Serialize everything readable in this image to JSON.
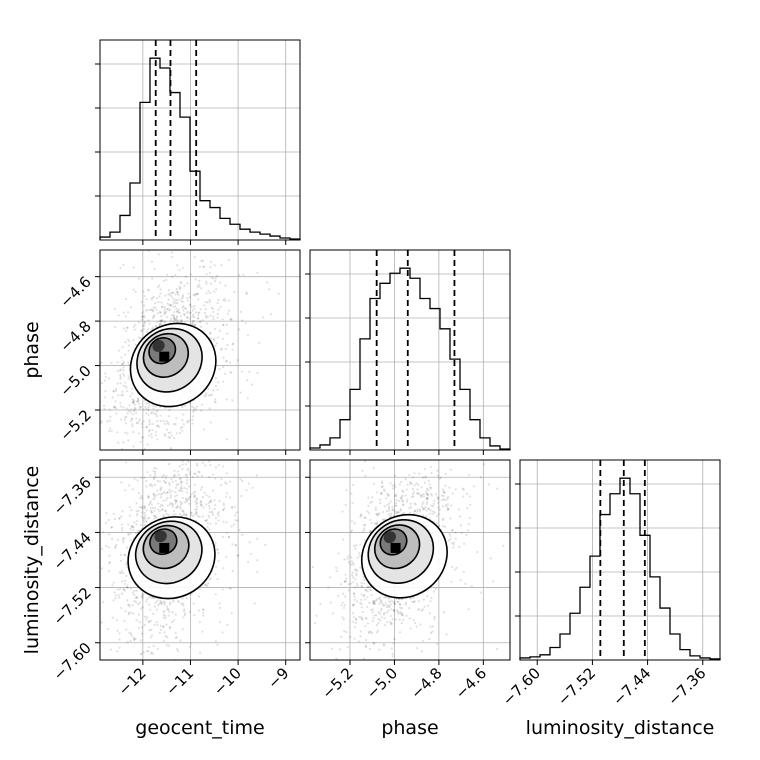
{
  "chart_data": {
    "type": "corner",
    "parameters": [
      "geocent_time",
      "phase",
      "luminosity_distance"
    ],
    "axis_labels": {
      "geocent_time": "geocent_time",
      "phase": "phase",
      "luminosity_distance": "luminosity_distance"
    },
    "ranges": {
      "geocent_time": [
        -12.9,
        -8.7
      ],
      "phase": [
        -5.38,
        -4.48
      ],
      "luminosity_distance": [
        -7.625,
        -7.335
      ]
    },
    "ticks": {
      "geocent_time": [
        {
          "value": -12,
          "label": "−12"
        },
        {
          "value": -11,
          "label": "−11"
        },
        {
          "value": -10,
          "label": "−10"
        },
        {
          "value": -9,
          "label": "−9"
        }
      ],
      "phase": [
        {
          "value": -5.2,
          "label": "−5.2"
        },
        {
          "value": -5.0,
          "label": "−5.0"
        },
        {
          "value": -4.8,
          "label": "−4.8"
        },
        {
          "value": -4.6,
          "label": "−4.6"
        }
      ],
      "luminosity_distance": [
        {
          "value": -7.6,
          "label": "−7.60"
        },
        {
          "value": -7.52,
          "label": "−7.52"
        },
        {
          "value": -7.44,
          "label": "−7.44"
        },
        {
          "value": -7.36,
          "label": "−7.36"
        }
      ]
    },
    "histograms": {
      "geocent_time": {
        "bins": [
          -12.9,
          -12.69,
          -12.48,
          -12.27,
          -12.06,
          -11.85,
          -11.64,
          -11.43,
          -11.22,
          -11.01,
          -10.8,
          -10.59,
          -10.38,
          -10.17,
          -9.96,
          -9.75,
          -9.54,
          -9.33,
          -9.12,
          -8.91,
          -8.7
        ],
        "counts": [
          3,
          8,
          25,
          58,
          140,
          185,
          175,
          150,
          125,
          70,
          40,
          33,
          22,
          16,
          11,
          8,
          6,
          4,
          2,
          1
        ]
      },
      "phase": {
        "bins": [
          -5.38,
          -5.335,
          -5.29,
          -5.245,
          -5.2,
          -5.155,
          -5.11,
          -5.065,
          -5.02,
          -4.975,
          -4.93,
          -4.885,
          -4.84,
          -4.795,
          -4.75,
          -4.705,
          -4.66,
          -4.615,
          -4.57,
          -4.525,
          -4.48
        ],
        "counts": [
          2,
          5,
          12,
          30,
          60,
          110,
          150,
          165,
          175,
          180,
          170,
          150,
          140,
          120,
          90,
          60,
          30,
          12,
          4,
          1
        ]
      },
      "luminosity_distance": {
        "bins": [
          -7.625,
          -7.6105,
          -7.596,
          -7.5815,
          -7.567,
          -7.5525,
          -7.538,
          -7.5235,
          -7.509,
          -7.4945,
          -7.48,
          -7.4655,
          -7.451,
          -7.4365,
          -7.422,
          -7.4075,
          -7.393,
          -7.3785,
          -7.364,
          -7.3495,
          -7.335
        ],
        "counts": [
          2,
          3,
          5,
          12,
          25,
          45,
          70,
          100,
          140,
          160,
          175,
          160,
          120,
          80,
          50,
          25,
          10,
          4,
          2,
          1
        ]
      }
    },
    "quantile_lines": {
      "geocent_time": [
        -11.73,
        -11.42,
        -10.88
      ],
      "phase": [
        -5.08,
        -4.94,
        -4.73
      ],
      "luminosity_distance": [
        -7.5085,
        -7.4745,
        -7.444
      ]
    },
    "peak_points": {
      "phase_vs_geocent_time": {
        "x": -11.55,
        "y": -4.96
      },
      "luminosity_distance_vs_geocent_time": {
        "x": -11.55,
        "y": -7.4625
      },
      "luminosity_distance_vs_phase": {
        "x": -4.995,
        "y": -7.4625
      }
    },
    "grid": true
  }
}
